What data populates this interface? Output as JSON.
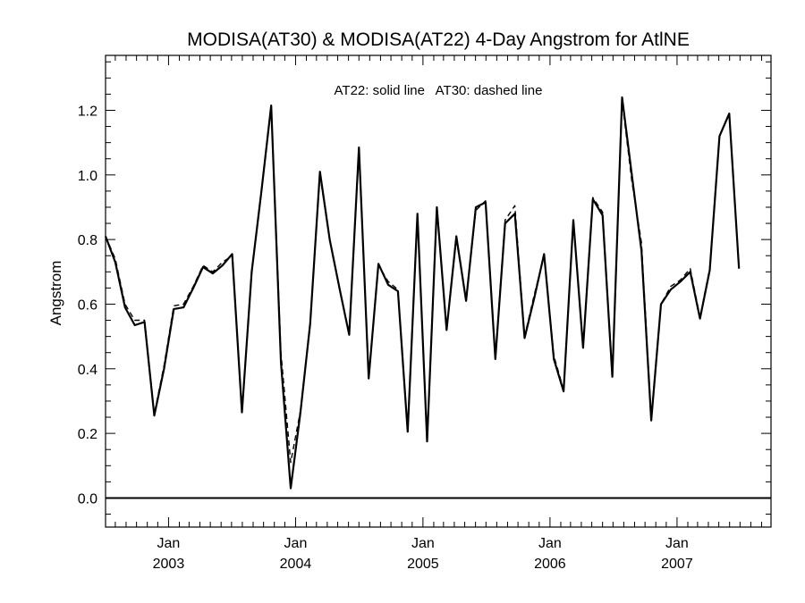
{
  "chart_data": {
    "type": "line",
    "title": "MODISA(AT30) & MODISA(AT22) 4-Day Angstrom for AtlNE",
    "annotation": "AT22: solid line   AT30: dashed line",
    "ylabel": "Angstrom",
    "xlabel": "",
    "ylim": [
      -0.09,
      1.37
    ],
    "xlim": [
      "2002-07-04",
      "2007-09-28"
    ],
    "yticks": [
      "0.0",
      "0.2",
      "0.4",
      "0.6",
      "0.8",
      "1.0",
      "1.2"
    ],
    "xtick_labels": [
      {
        "month": "Jan",
        "year": "2003"
      },
      {
        "month": "Jan",
        "year": "2004"
      },
      {
        "month": "Jan",
        "year": "2005"
      },
      {
        "month": "Jan",
        "year": "2006"
      },
      {
        "month": "Jan",
        "year": "2007"
      }
    ],
    "grid": false,
    "zero_line": true,
    "series": [
      {
        "name": "AT22",
        "style": "solid",
        "points": [
          [
            "2002-07-04",
            0.81
          ],
          [
            "2002-08-01",
            0.73
          ],
          [
            "2002-08-29",
            0.59
          ],
          [
            "2002-09-26",
            0.535
          ],
          [
            "2002-10-24",
            0.545
          ],
          [
            "2002-11-21",
            0.255
          ],
          [
            "2002-12-19",
            0.4
          ],
          [
            "2003-01-16",
            0.585
          ],
          [
            "2003-02-13",
            0.59
          ],
          [
            "2003-03-13",
            0.65
          ],
          [
            "2003-04-10",
            0.715
          ],
          [
            "2003-05-08",
            0.695
          ],
          [
            "2003-06-05",
            0.72
          ],
          [
            "2003-07-03",
            0.755
          ],
          [
            "2003-07-31",
            0.265
          ],
          [
            "2003-08-28",
            0.7
          ],
          [
            "2003-09-25",
            0.95
          ],
          [
            "2003-10-23",
            1.215
          ],
          [
            "2003-11-20",
            0.42
          ],
          [
            "2003-12-18",
            0.03
          ],
          [
            "2004-01-15",
            0.265
          ],
          [
            "2004-02-12",
            0.54
          ],
          [
            "2004-03-11",
            1.01
          ],
          [
            "2004-04-08",
            0.8
          ],
          [
            "2004-05-06",
            0.65
          ],
          [
            "2004-06-03",
            0.505
          ],
          [
            "2004-07-01",
            1.085
          ],
          [
            "2004-07-29",
            0.37
          ],
          [
            "2004-08-26",
            0.725
          ],
          [
            "2004-09-23",
            0.66
          ],
          [
            "2004-10-21",
            0.64
          ],
          [
            "2004-11-18",
            0.205
          ],
          [
            "2004-12-16",
            0.88
          ],
          [
            "2005-01-13",
            0.175
          ],
          [
            "2005-02-10",
            0.9
          ],
          [
            "2005-03-10",
            0.52
          ],
          [
            "2005-04-07",
            0.81
          ],
          [
            "2005-05-05",
            0.61
          ],
          [
            "2005-06-02",
            0.9
          ],
          [
            "2005-06-30",
            0.915
          ],
          [
            "2005-07-28",
            0.43
          ],
          [
            "2005-08-25",
            0.85
          ],
          [
            "2005-09-22",
            0.88
          ],
          [
            "2005-10-20",
            0.495
          ],
          [
            "2005-11-17",
            0.62
          ],
          [
            "2005-12-15",
            0.755
          ],
          [
            "2006-01-12",
            0.43
          ],
          [
            "2006-02-09",
            0.33
          ],
          [
            "2006-03-09",
            0.86
          ],
          [
            "2006-04-06",
            0.465
          ],
          [
            "2006-05-04",
            0.925
          ],
          [
            "2006-06-01",
            0.875
          ],
          [
            "2006-06-29",
            0.375
          ],
          [
            "2006-07-27",
            1.24
          ],
          [
            "2006-08-24",
            1.0
          ],
          [
            "2006-09-21",
            0.765
          ],
          [
            "2006-10-19",
            0.24
          ],
          [
            "2006-11-16",
            0.6
          ],
          [
            "2006-12-14",
            0.645
          ],
          [
            "2007-01-11",
            0.67
          ],
          [
            "2007-02-08",
            0.7
          ],
          [
            "2007-03-08",
            0.555
          ],
          [
            "2007-04-05",
            0.705
          ],
          [
            "2007-05-03",
            1.12
          ],
          [
            "2007-05-31",
            1.19
          ],
          [
            "2007-06-28",
            0.71
          ]
        ]
      },
      {
        "name": "AT30",
        "style": "dashed",
        "points": [
          [
            "2002-07-04",
            0.81
          ],
          [
            "2002-08-01",
            0.74
          ],
          [
            "2002-08-29",
            0.6
          ],
          [
            "2002-09-26",
            0.55
          ],
          [
            "2002-10-24",
            0.55
          ],
          [
            "2002-11-21",
            0.26
          ],
          [
            "2002-12-19",
            0.41
          ],
          [
            "2003-01-16",
            0.595
          ],
          [
            "2003-02-13",
            0.6
          ],
          [
            "2003-03-13",
            0.655
          ],
          [
            "2003-04-10",
            0.72
          ],
          [
            "2003-05-08",
            0.7
          ],
          [
            "2003-06-05",
            0.73
          ],
          [
            "2003-07-03",
            0.75
          ],
          [
            "2003-07-31",
            0.27
          ],
          [
            "2003-08-28",
            0.7
          ],
          [
            "2003-09-25",
            0.95
          ],
          [
            "2003-10-23",
            1.21
          ],
          [
            "2003-11-20",
            0.45
          ],
          [
            "2003-12-18",
            0.11
          ],
          [
            "2004-01-15",
            0.27
          ],
          [
            "2004-02-12",
            0.54
          ],
          [
            "2004-03-11",
            1.0
          ],
          [
            "2004-04-08",
            0.8
          ],
          [
            "2004-05-06",
            0.65
          ],
          [
            "2004-06-03",
            0.505
          ],
          [
            "2004-07-01",
            1.08
          ],
          [
            "2004-07-29",
            0.37
          ],
          [
            "2004-08-26",
            0.72
          ],
          [
            "2004-09-23",
            0.67
          ],
          [
            "2004-10-21",
            0.645
          ],
          [
            "2004-11-18",
            0.21
          ],
          [
            "2004-12-16",
            0.875
          ],
          [
            "2005-01-13",
            0.18
          ],
          [
            "2005-02-10",
            0.895
          ],
          [
            "2005-03-10",
            0.525
          ],
          [
            "2005-04-07",
            0.8
          ],
          [
            "2005-05-05",
            0.615
          ],
          [
            "2005-06-02",
            0.89
          ],
          [
            "2005-06-30",
            0.92
          ],
          [
            "2005-07-28",
            0.435
          ],
          [
            "2005-08-25",
            0.86
          ],
          [
            "2005-09-22",
            0.905
          ],
          [
            "2005-10-20",
            0.5
          ],
          [
            "2005-11-17",
            0.63
          ],
          [
            "2005-12-15",
            0.75
          ],
          [
            "2006-01-12",
            0.44
          ],
          [
            "2006-02-09",
            0.335
          ],
          [
            "2006-03-09",
            0.86
          ],
          [
            "2006-04-06",
            0.47
          ],
          [
            "2006-05-04",
            0.93
          ],
          [
            "2006-06-01",
            0.885
          ],
          [
            "2006-06-29",
            0.38
          ],
          [
            "2006-07-27",
            1.23
          ],
          [
            "2006-08-24",
            0.98
          ],
          [
            "2006-09-21",
            0.79
          ],
          [
            "2006-10-19",
            0.25
          ],
          [
            "2006-11-16",
            0.6
          ],
          [
            "2006-12-14",
            0.655
          ],
          [
            "2007-01-11",
            0.675
          ],
          [
            "2007-02-08",
            0.71
          ],
          [
            "2007-03-08",
            0.56
          ],
          [
            "2007-04-05",
            0.71
          ],
          [
            "2007-05-03",
            1.12
          ],
          [
            "2007-05-31",
            1.19
          ],
          [
            "2007-06-28",
            0.71
          ]
        ]
      }
    ]
  }
}
